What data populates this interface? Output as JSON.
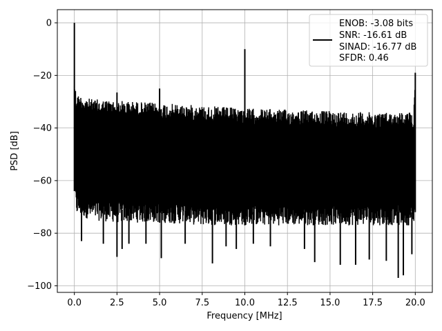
{
  "chart_data": {
    "type": "line",
    "title": "",
    "xlabel": "Frequency [MHz]",
    "ylabel": "PSD [dB]",
    "xlim": [
      -1.0,
      21.0
    ],
    "ylim": [
      -102.5,
      5.0
    ],
    "xticks": [
      0.0,
      2.5,
      5.0,
      7.5,
      10.0,
      12.5,
      15.0,
      17.5,
      20.0
    ],
    "xtick_labels": [
      "0.0",
      "2.5",
      "5.0",
      "7.5",
      "10.0",
      "12.5",
      "15.0",
      "17.5",
      "20.0"
    ],
    "yticks": [
      0,
      -20,
      -40,
      -60,
      -80,
      -100
    ],
    "ytick_labels": [
      "0",
      "−20",
      "−40",
      "−60",
      "−80",
      "−100"
    ],
    "grid": true,
    "legend": {
      "placement": "top-right",
      "entries": [
        "ENOB: -3.08 bits",
        "SNR: -16.61 dB",
        "SINAD: -16.77 dB",
        "SFDR: 0.46"
      ]
    },
    "series": [
      {
        "color": "#000000",
        "noise_envelope": {
          "x": [
            0.0,
            0.1,
            1.0,
            2.5,
            5.0,
            7.5,
            10.0,
            12.5,
            15.0,
            17.5,
            19.9,
            20.0
          ],
          "upper": [
            -20,
            -27,
            -29,
            -29.5,
            -30.5,
            -31.5,
            -32.5,
            -33,
            -33.5,
            -34,
            -34,
            -19
          ],
          "lower": [
            -64,
            -73,
            -75,
            -76,
            -76,
            -77,
            -77,
            -77,
            -77,
            -77,
            -77,
            -72
          ]
        },
        "spikes": [
          {
            "x": 0.0,
            "y": 0.0
          },
          {
            "x": 2.5,
            "y": -26.5
          },
          {
            "x": 5.0,
            "y": -25.0
          },
          {
            "x": 10.0,
            "y": -10.0
          },
          {
            "x": 20.0,
            "y": -19.0
          }
        ],
        "dips": [
          {
            "x": 0.42,
            "y": -83
          },
          {
            "x": 1.7,
            "y": -84
          },
          {
            "x": 2.5,
            "y": -89
          },
          {
            "x": 2.8,
            "y": -86
          },
          {
            "x": 3.2,
            "y": -84
          },
          {
            "x": 4.2,
            "y": -84
          },
          {
            "x": 5.1,
            "y": -89.5
          },
          {
            "x": 6.5,
            "y": -84
          },
          {
            "x": 8.1,
            "y": -91.5
          },
          {
            "x": 8.9,
            "y": -85
          },
          {
            "x": 9.5,
            "y": -86
          },
          {
            "x": 10.5,
            "y": -84
          },
          {
            "x": 11.5,
            "y": -85
          },
          {
            "x": 13.5,
            "y": -86
          },
          {
            "x": 14.1,
            "y": -91
          },
          {
            "x": 15.6,
            "y": -92
          },
          {
            "x": 16.5,
            "y": -92
          },
          {
            "x": 17.3,
            "y": -90
          },
          {
            "x": 18.3,
            "y": -90.5
          },
          {
            "x": 19.0,
            "y": -97
          },
          {
            "x": 19.3,
            "y": -96
          },
          {
            "x": 19.8,
            "y": -88
          }
        ]
      }
    ]
  }
}
